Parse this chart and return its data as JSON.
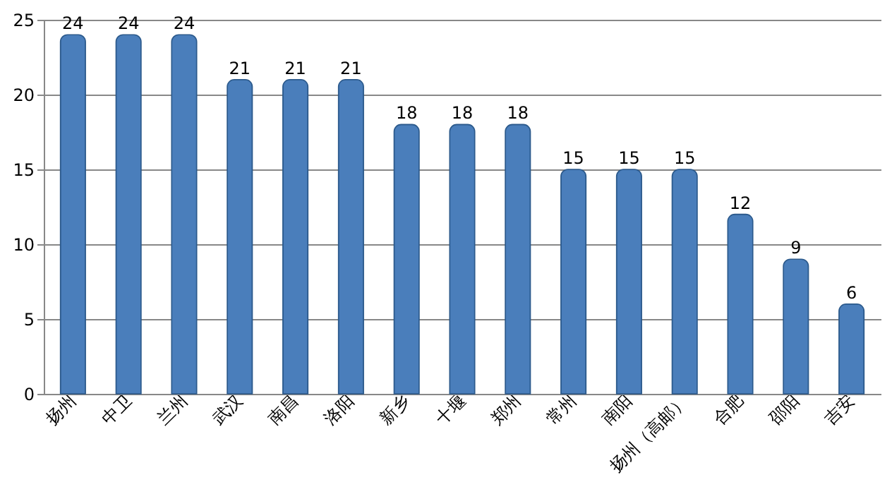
{
  "chart_data": {
    "type": "bar",
    "categories": [
      "扬州",
      "中卫",
      "兰州",
      "武汉",
      "南昌",
      "洛阳",
      "新乡",
      "十堰",
      "郑州",
      "常州",
      "南阳",
      "扬州（高邮）",
      "合肥",
      "邵阳",
      "吉安"
    ],
    "values": [
      24,
      24,
      24,
      21,
      21,
      21,
      18,
      18,
      18,
      15,
      15,
      15,
      12,
      9,
      6
    ],
    "color": "#4a7ebb",
    "ylim": [
      0,
      25
    ],
    "yticks": [
      0,
      5,
      10,
      15,
      20,
      25
    ],
    "grid": "y",
    "data_labels": true
  }
}
